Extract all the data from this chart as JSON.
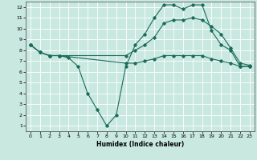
{
  "xlabel": "Humidex (Indice chaleur)",
  "xlim": [
    -0.5,
    23.5
  ],
  "ylim": [
    0.5,
    12.5
  ],
  "yticks": [
    1,
    2,
    3,
    4,
    5,
    6,
    7,
    8,
    9,
    10,
    11,
    12
  ],
  "xticks": [
    0,
    1,
    2,
    3,
    4,
    5,
    6,
    7,
    8,
    9,
    10,
    11,
    12,
    13,
    14,
    15,
    16,
    17,
    18,
    19,
    20,
    21,
    22,
    23
  ],
  "background_color": "#c8e8e0",
  "grid_color": "#ffffff",
  "line_color": "#1a6b5a",
  "line1_x": [
    0,
    1,
    2,
    3,
    4,
    5,
    6,
    7,
    8,
    9,
    10,
    11,
    12,
    13,
    14,
    15,
    16,
    17,
    18,
    19,
    20,
    21,
    22,
    23
  ],
  "line1_y": [
    8.5,
    7.8,
    7.5,
    7.5,
    7.3,
    6.5,
    4.0,
    2.5,
    1.0,
    2.0,
    6.5,
    8.5,
    9.5,
    11.0,
    12.2,
    12.2,
    11.8,
    12.2,
    12.2,
    9.8,
    8.5,
    8.0,
    6.5,
    6.5
  ],
  "line2_x": [
    0,
    1,
    2,
    3,
    10,
    11,
    12,
    13,
    14,
    15,
    16,
    17,
    18,
    19,
    20,
    21,
    22,
    23
  ],
  "line2_y": [
    8.5,
    7.8,
    7.5,
    7.5,
    7.5,
    8.0,
    8.5,
    9.2,
    10.5,
    10.8,
    10.8,
    11.0,
    10.8,
    10.2,
    9.5,
    8.2,
    6.8,
    6.6
  ],
  "line3_x": [
    0,
    1,
    2,
    3,
    10,
    11,
    12,
    13,
    14,
    15,
    16,
    17,
    18,
    19,
    20,
    21,
    22,
    23
  ],
  "line3_y": [
    8.5,
    7.8,
    7.5,
    7.5,
    6.8,
    6.8,
    7.0,
    7.2,
    7.5,
    7.5,
    7.5,
    7.5,
    7.5,
    7.2,
    7.0,
    6.8,
    6.5,
    6.5
  ]
}
